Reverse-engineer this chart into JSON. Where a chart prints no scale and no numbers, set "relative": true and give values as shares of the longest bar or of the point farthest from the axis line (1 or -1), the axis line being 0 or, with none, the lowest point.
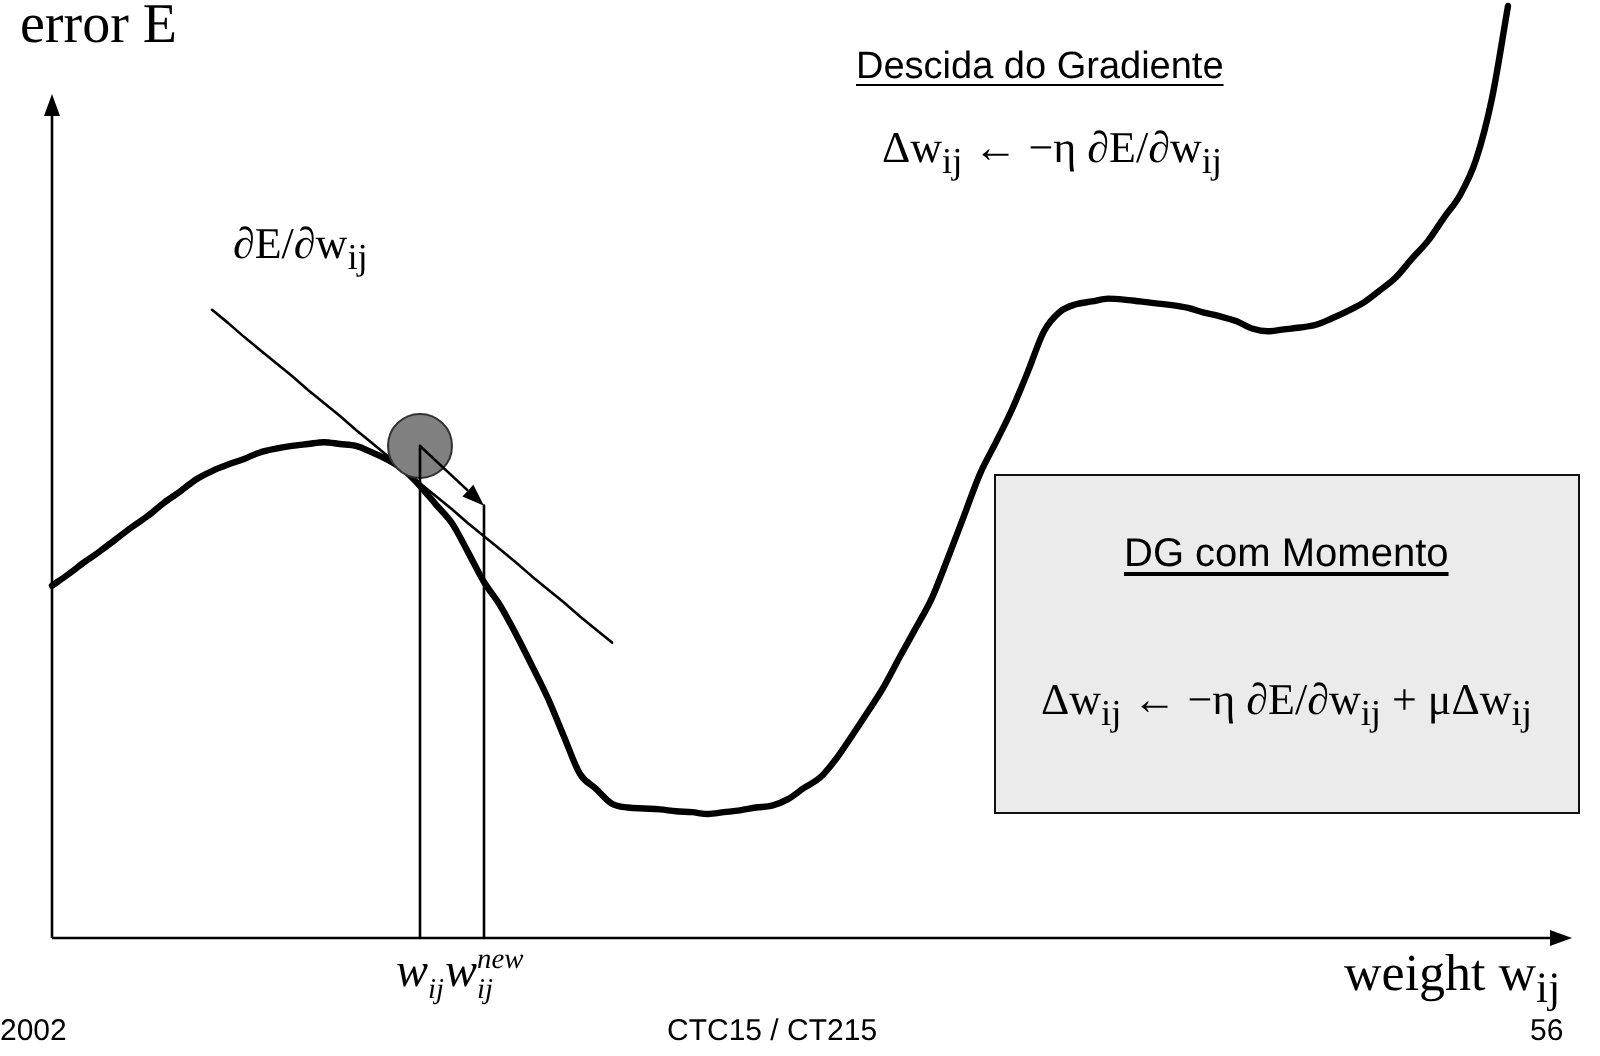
{
  "chart_data": {
    "type": "line",
    "relative": true,
    "tick_labels": "x",
    "marker": "none",
    "ylabel": "error E",
    "xlabel": "weight w$_{ij}$",
    "categories": [
      null,
      null,
      null,
      null,
      null,
      null,
      null,
      null,
      null,
      null,
      null,
      null,
      null,
      null,
      null,
      null,
      null,
      null,
      null,
      null,
      null,
      null,
      null,
      "w$_{ij}$",
      null,
      null,
      null,
      "w$_{ij}$$^{new}$",
      null,
      null,
      null,
      null,
      null,
      null,
      null,
      null,
      null,
      null,
      null,
      null,
      null,
      null,
      null,
      null,
      null,
      null,
      null,
      null,
      null,
      null,
      null,
      null,
      null,
      null,
      null,
      null,
      null,
      null,
      null,
      null,
      null,
      null,
      null,
      null,
      null,
      null,
      null,
      null,
      null,
      null,
      null,
      null,
      null,
      null,
      null,
      null,
      null,
      null,
      null,
      null,
      null,
      null,
      null,
      null,
      null,
      null,
      null,
      null,
      null,
      null,
      null,
      null,
      null,
      null,
      null,
      null
    ],
    "series": [
      {
        "color": "#000000",
        "values": [
          0.378,
          0.39,
          0.403,
          0.415,
          0.428,
          0.441,
          0.453,
          0.467,
          0.479,
          0.492,
          0.501,
          0.508,
          0.514,
          0.521,
          0.525,
          0.528,
          0.53,
          0.532,
          0.53,
          0.528,
          0.521,
          0.513,
          0.502,
          0.485,
          0.465,
          0.445,
          0.414,
          0.382,
          0.357,
          0.326,
          0.292,
          0.257,
          0.216,
          0.176,
          0.16,
          0.144,
          0.14,
          0.139,
          0.138,
          0.136,
          0.135,
          0.133,
          0.135,
          0.137,
          0.14,
          0.142,
          0.149,
          0.161,
          0.172,
          0.192,
          0.217,
          0.243,
          0.27,
          0.302,
          0.333,
          0.365,
          0.408,
          0.453,
          0.498,
          0.532,
          0.567,
          0.608,
          0.651,
          0.672,
          0.68,
          0.683,
          0.686,
          0.685,
          0.683,
          0.681,
          0.679,
          0.676,
          0.671,
          0.667,
          0.662,
          0.654,
          0.651,
          0.653,
          0.655,
          0.658,
          0.665,
          0.673,
          0.682,
          0.695,
          0.709,
          0.729,
          0.748,
          0.773,
          0.797,
          0.835,
          0.901,
          1.0,
          null,
          null,
          null,
          null
        ]
      },
      {
        "name": "∂E/∂w$_{ij}$",
        "color": "#000000",
        "values": [
          null,
          null,
          null,
          null,
          null,
          null,
          null,
          null,
          null,
          null,
          0.674,
          0.66,
          0.645,
          0.631,
          0.617,
          0.603,
          0.588,
          0.574,
          0.56,
          0.545,
          0.531,
          0.517,
          0.503,
          0.488,
          0.474,
          0.46,
          0.445,
          0.431,
          0.417,
          0.403,
          0.388,
          0.374,
          0.36,
          0.345,
          0.331,
          0.317,
          null,
          null,
          null,
          null,
          null,
          null,
          null,
          null,
          null,
          null,
          null,
          null,
          null,
          null,
          null,
          null,
          null,
          null,
          null,
          null,
          null,
          null,
          null,
          null,
          null,
          null,
          null,
          null,
          null,
          null,
          null,
          null,
          null,
          null,
          null,
          null,
          null,
          null,
          null,
          null,
          null,
          null,
          null,
          null,
          null,
          null,
          null,
          null,
          null,
          null,
          null,
          null,
          null,
          null,
          null,
          null,
          null,
          null,
          null,
          null
        ]
      },
      {
        "type": "scatter",
        "marker": "circle",
        "color": "#808080",
        "x": [
          "w$_{ij}$"
        ],
        "values": [
          0.528
        ]
      },
      {
        "color": "#000000",
        "x": [
          "w$_{ij}$",
          "w$_{ij}$"
        ],
        "values": [
          0,
          0.528
        ]
      },
      {
        "color": "#000000",
        "x": [
          "w$_{ij}$$^{new}$",
          "w$_{ij}$$^{new}$"
        ],
        "values": [
          0,
          0.464
        ]
      }
    ],
    "annotations": [
      "Descida do Gradiente",
      "Δw$_{ij}$ ← −η ∂E/∂w$_{ij}$",
      "DG com Momento",
      "Δw$_{ij}$ ← −η ∂E/∂w$_{ij}$ + μΔw$_{ij}$",
      "2002",
      "CTC15 / CT215",
      "56"
    ]
  }
}
